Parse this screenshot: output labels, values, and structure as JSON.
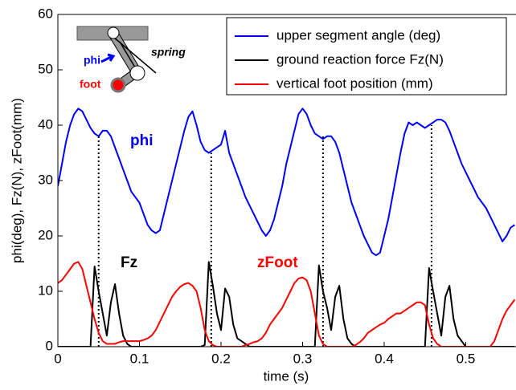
{
  "chart_data": {
    "type": "line",
    "xlabel": "time (s)",
    "ylabel": "phi(deg), Fz(N), zFoot(mm)",
    "x": [
      0,
      0.005,
      0.01,
      0.015,
      0.02,
      0.025,
      0.03,
      0.035,
      0.04,
      0.045,
      0.05,
      0.055,
      0.06,
      0.065,
      0.07,
      0.075,
      0.08,
      0.085,
      0.09,
      0.095,
      0.1,
      0.105,
      0.11,
      0.115,
      0.12,
      0.125,
      0.13,
      0.135,
      0.14,
      0.145,
      0.15,
      0.155,
      0.16,
      0.165,
      0.17,
      0.175,
      0.18,
      0.185,
      0.19,
      0.195,
      0.2,
      0.205,
      0.21,
      0.215,
      0.22,
      0.225,
      0.23,
      0.235,
      0.24,
      0.245,
      0.25,
      0.255,
      0.26,
      0.265,
      0.27,
      0.275,
      0.28,
      0.285,
      0.29,
      0.295,
      0.3,
      0.305,
      0.31,
      0.315,
      0.32,
      0.325,
      0.33,
      0.335,
      0.34,
      0.345,
      0.35,
      0.355,
      0.36,
      0.365,
      0.37,
      0.375,
      0.38,
      0.385,
      0.39,
      0.395,
      0.4,
      0.405,
      0.41,
      0.415,
      0.42,
      0.425,
      0.43,
      0.435,
      0.44,
      0.445,
      0.45,
      0.455,
      0.46,
      0.465,
      0.47,
      0.475,
      0.48,
      0.485,
      0.49,
      0.495,
      0.5,
      0.505,
      0.51,
      0.515,
      0.52,
      0.525,
      0.53,
      0.535,
      0.54,
      0.545,
      0.55,
      0.555,
      0.56
    ],
    "series": [
      {
        "name": "upper segment angle (deg)",
        "color": "#0000ff",
        "values": [
          29,
          33,
          37,
          40,
          42,
          43,
          42.5,
          41,
          39.5,
          38.5,
          38,
          39,
          39,
          38,
          36,
          34,
          32,
          30,
          28,
          27,
          26,
          24,
          22,
          21,
          20.5,
          21,
          24,
          27,
          30,
          33,
          36,
          39,
          41.5,
          42.5,
          40,
          37,
          35.5,
          35,
          35.5,
          36,
          36.5,
          39,
          35,
          33,
          31,
          29,
          27,
          25.5,
          24,
          22.5,
          21,
          20,
          21,
          23,
          26,
          29,
          33,
          36,
          39,
          42,
          43,
          42,
          40,
          38.5,
          38,
          37.5,
          38,
          38,
          37,
          35,
          32,
          29,
          26,
          24,
          22,
          20,
          18.5,
          17,
          16.5,
          17,
          20,
          23,
          27,
          31,
          35,
          38.5,
          40.5,
          40,
          40.5,
          40,
          39.5,
          40,
          40.5,
          41,
          41,
          40.5,
          39,
          37,
          35,
          33,
          31.5,
          30,
          28.5,
          27,
          26,
          25,
          23.5,
          22,
          20.5,
          19,
          20,
          21.5,
          22
        ]
      },
      {
        "name": "ground reaction force Fz(N)",
        "color": "#000000",
        "values": [
          0,
          0,
          0,
          0,
          0,
          0,
          0,
          0,
          0,
          14.5,
          10,
          6,
          2,
          8,
          11.3,
          6,
          2,
          0.5,
          0,
          0,
          0,
          0,
          0,
          0,
          0,
          0,
          0,
          0,
          0,
          0,
          0,
          0,
          0,
          0,
          0,
          0,
          0.3,
          15.3,
          11,
          6,
          3,
          10.5,
          9,
          4,
          1.5,
          1,
          0.5,
          0,
          0,
          0,
          0,
          0,
          0,
          0,
          0,
          0,
          0,
          0,
          0,
          0,
          0,
          0,
          0,
          0,
          14.7,
          10,
          7,
          3,
          9,
          11,
          5,
          1.5,
          0.5,
          0,
          0,
          0,
          0,
          0,
          0,
          0,
          0,
          0,
          0,
          0,
          0,
          0,
          0,
          0,
          0,
          0,
          0,
          14.2,
          10,
          6,
          2,
          9,
          11,
          5,
          2,
          1,
          0,
          0,
          0,
          0,
          0,
          0,
          0,
          0,
          0,
          0,
          0,
          0,
          0
        ]
      },
      {
        "name": "vertical foot position (mm)",
        "color": "#ff0000",
        "values": [
          11.5,
          12,
          13,
          14,
          15,
          15.3,
          14,
          11,
          8,
          5,
          2.5,
          1,
          0.5,
          0.5,
          0.5,
          0.8,
          1,
          1,
          1,
          1,
          1,
          1.2,
          1.5,
          2,
          3,
          4.5,
          6,
          7.5,
          9,
          10,
          10.8,
          11.3,
          11.5,
          11,
          10,
          7,
          3,
          1,
          0.3,
          0,
          0,
          0,
          0,
          0,
          0,
          0,
          0.3,
          0.5,
          0.8,
          1,
          1.5,
          2.5,
          4,
          5,
          6,
          7,
          8.5,
          10,
          11.5,
          12.3,
          12.5,
          12,
          10,
          6,
          2,
          0.5,
          0,
          0,
          0,
          0,
          0,
          0,
          0,
          0.3,
          0.8,
          1.5,
          2.5,
          3,
          3.5,
          4,
          4.3,
          5,
          5.5,
          6,
          6,
          6.5,
          7,
          7.5,
          8,
          8,
          7.5,
          4,
          1.5,
          0.5,
          0,
          0,
          0,
          0,
          0,
          0,
          0,
          0,
          0,
          0,
          0,
          0,
          0,
          1,
          3,
          5,
          6.5,
          7.5,
          8.5
        ]
      }
    ],
    "dotted_lines": [
      {
        "x": 0.05,
        "y": 38
      },
      {
        "x": 0.188,
        "y": 35
      },
      {
        "x": 0.325,
        "y": 38
      },
      {
        "x": 0.458,
        "y": 40
      }
    ],
    "annotations": [
      "phi",
      "Fz",
      "zFoot"
    ],
    "inset_labels": [
      "phi",
      "spring",
      "foot"
    ],
    "xlim": [
      0,
      0.56
    ],
    "ylim": [
      0,
      60
    ],
    "xticks": [
      0,
      0.1,
      0.2,
      0.3,
      0.4,
      0.5
    ],
    "yticks": [
      0,
      10,
      20,
      30,
      40,
      50,
      60
    ],
    "grid": false,
    "legend": "upper right"
  }
}
